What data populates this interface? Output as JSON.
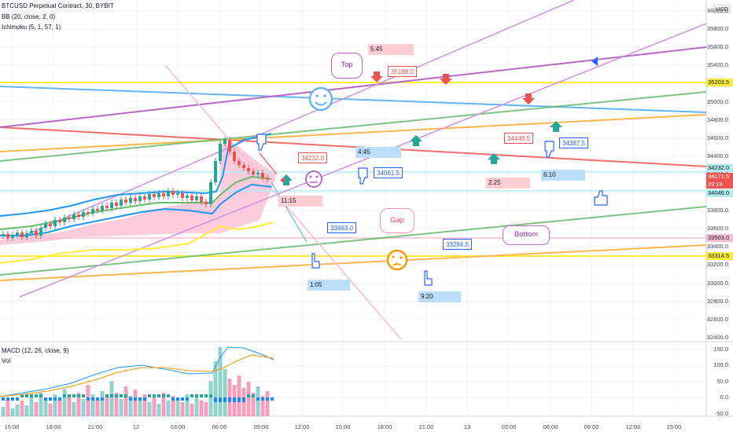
{
  "legend": {
    "title": "BTCUSD Perpetual Contract, 30, BYBIT",
    "bb": "BB (20, close, 2, 0)",
    "ichimoku": "Ichimoku (5, 1, 57, 1)",
    "macd": "MACD (12, 26, close, 9)",
    "vol": "Vol"
  },
  "currency": "USD",
  "price_axis": [
    "36000.0",
    "35800.0",
    "35600.0",
    "35400.0",
    "35200.0",
    "35000.0",
    "34800.0",
    "34600.0",
    "34400.0",
    "34200.0",
    "34000.0",
    "33800.0",
    "33600.0",
    "33400.0",
    "33200.0",
    "33000.0",
    "32800.0",
    "32600.0",
    "32400.0"
  ],
  "macd_axis": [
    "150.0",
    "100.0",
    "50.0",
    "0.0",
    "-50.0"
  ],
  "time_axis": [
    "15:00",
    "18:00",
    "21:00",
    "12",
    "03:00",
    "06:00",
    "09:00",
    "12:00",
    "15:00",
    "18:00",
    "21:00",
    "13",
    "03:00",
    "06:00",
    "09:00",
    "12:00",
    "15:00"
  ],
  "price_tags": {
    "p1": {
      "value": "35203.5",
      "bg": "#ffeb3b",
      "fg": "#131722"
    },
    "p2": {
      "value": "34232.0",
      "bg": "#b2ebf2",
      "fg": "#131722"
    },
    "p3": {
      "value": "34171.5",
      "value2": "29:18",
      "bg": "#ef5350",
      "fg": "#ffffff"
    },
    "p4": {
      "value": "34046.0",
      "bg": "#b2ebf2",
      "fg": "#131722"
    },
    "p5": {
      "value": "33503.0",
      "bg": "#f8bbd0",
      "fg": "#131722"
    },
    "p6": {
      "value": "33314.5",
      "bg": "#ffeb3b",
      "fg": "#131722"
    }
  },
  "time_boxes": [
    {
      "id": "t1",
      "text": "5:45",
      "color": "#ffcdd2"
    },
    {
      "id": "t2",
      "text": "4:45",
      "color": "#bbdefb"
    },
    {
      "id": "t3",
      "text": "11:15",
      "color": "#ffcdd2"
    },
    {
      "id": "t4",
      "text": "2:25",
      "color": "#ffcdd2"
    },
    {
      "id": "t5",
      "text": "6:10",
      "color": "#bbdefb"
    },
    {
      "id": "t6",
      "text": "1:05",
      "color": "#bbdefb"
    },
    {
      "id": "t7",
      "text": "9:20",
      "color": "#bbdefb"
    }
  ],
  "price_labels": [
    {
      "id": "l1",
      "text": "35188.0",
      "color": "#ef5350"
    },
    {
      "id": "l2",
      "text": "34232.0",
      "color": "#ef5350"
    },
    {
      "id": "l3",
      "text": "34449.5",
      "color": "#ef5350"
    },
    {
      "id": "l4",
      "text": "34061.5",
      "color": "#2962ff"
    },
    {
      "id": "l5",
      "text": "34387.5",
      "color": "#2962ff"
    },
    {
      "id": "l6",
      "text": "33463.0",
      "color": "#2962ff"
    },
    {
      "id": "l7",
      "text": "33284.5",
      "color": "#2962ff"
    }
  ],
  "callouts": {
    "top": "Top",
    "gap": "Gap",
    "bottom": "Bottom"
  },
  "colors": {
    "up": "#26a69a",
    "down": "#ef5350",
    "bb": "#2196f3",
    "macd": "#2196f3",
    "signal": "#ff9800",
    "callout": "#9c27b0"
  }
}
